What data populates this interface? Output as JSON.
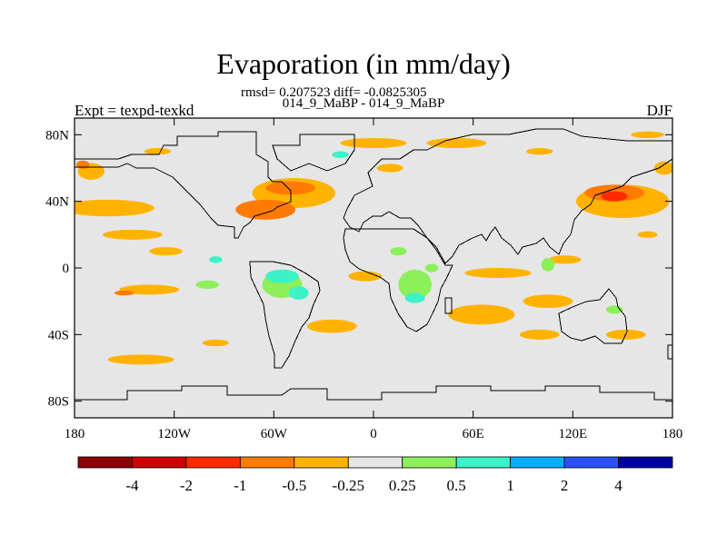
{
  "chart_data": {
    "type": "heatmap",
    "title": "Evaporation (in mm/day)",
    "stat_text": "rmsd= 0.207523 diff= -0.0825305",
    "subtitle": "014_9_MaBP - 014_9_MaBP",
    "left_label": "Expt = texpd-texkd",
    "right_label": "DJF",
    "xlim": [
      -180,
      180
    ],
    "ylim": [
      -90,
      90
    ],
    "x_ticks": [
      {
        "value": -180,
        "label": "180"
      },
      {
        "value": -120,
        "label": "120W"
      },
      {
        "value": -60,
        "label": "60W"
      },
      {
        "value": 0,
        "label": "0"
      },
      {
        "value": 60,
        "label": "60E"
      },
      {
        "value": 120,
        "label": "120E"
      },
      {
        "value": 180,
        "label": "180"
      }
    ],
    "y_ticks": [
      {
        "value": 80,
        "label": "80N"
      },
      {
        "value": 40,
        "label": "40N"
      },
      {
        "value": 0,
        "label": "0"
      },
      {
        "value": -40,
        "label": "40S"
      },
      {
        "value": -80,
        "label": "80S"
      }
    ],
    "colorbar": {
      "colors": [
        "#8b0000",
        "#cc0000",
        "#ff2a00",
        "#ff7a00",
        "#ffb300",
        "#e6e6e6",
        "#8cf05a",
        "#3cf2c8",
        "#00b0ff",
        "#2a50ff",
        "#0000a0"
      ],
      "labels": [
        "-4",
        "-2",
        "-1",
        "-0.5",
        "-0.25",
        "0.25",
        "0.5",
        "1",
        "2",
        "4"
      ]
    },
    "regions": [
      {
        "lon": 175,
        "lat": 60,
        "rx": 6,
        "ry": 4,
        "color": "#ffb300"
      },
      {
        "lon": -170,
        "lat": 58,
        "rx": 8,
        "ry": 5,
        "color": "#ffb300"
      },
      {
        "lon": -175,
        "lat": 62,
        "rx": 4,
        "ry": 2.5,
        "color": "#ff7a00"
      },
      {
        "lon": -160,
        "lat": 36,
        "rx": 28,
        "ry": 5,
        "color": "#ffb300"
      },
      {
        "lon": -145,
        "lat": 20,
        "rx": 18,
        "ry": 3,
        "color": "#ffb300"
      },
      {
        "lon": -125,
        "lat": 10,
        "rx": 10,
        "ry": 2.5,
        "color": "#ffb300"
      },
      {
        "lon": -135,
        "lat": -13,
        "rx": 18,
        "ry": 3,
        "color": "#ffb300"
      },
      {
        "lon": -150,
        "lat": -15,
        "rx": 6,
        "ry": 1.5,
        "color": "#ff7a00"
      },
      {
        "lon": -140,
        "lat": -55,
        "rx": 20,
        "ry": 3,
        "color": "#ffb300"
      },
      {
        "lon": -95,
        "lat": -45,
        "rx": 8,
        "ry": 2,
        "color": "#ffb300"
      },
      {
        "lon": -48,
        "lat": 45,
        "rx": 25,
        "ry": 9,
        "color": "#ffb300"
      },
      {
        "lon": -65,
        "lat": 35,
        "rx": 18,
        "ry": 6,
        "color": "#ff7a00"
      },
      {
        "lon": -50,
        "lat": 48,
        "rx": 15,
        "ry": 4,
        "color": "#ff7a00"
      },
      {
        "lon": 0,
        "lat": 75,
        "rx": 20,
        "ry": 3,
        "color": "#ffb300"
      },
      {
        "lon": 50,
        "lat": 75,
        "rx": 18,
        "ry": 3,
        "color": "#ffb300"
      },
      {
        "lon": 10,
        "lat": 60,
        "rx": 8,
        "ry": 2.5,
        "color": "#ffb300"
      },
      {
        "lon": -20,
        "lat": 68,
        "rx": 5,
        "ry": 2,
        "color": "#3cf2c8"
      },
      {
        "lon": -130,
        "lat": 70,
        "rx": 8,
        "ry": 2,
        "color": "#ffb300"
      },
      {
        "lon": 100,
        "lat": 70,
        "rx": 8,
        "ry": 2,
        "color": "#ffb300"
      },
      {
        "lon": 165,
        "lat": 80,
        "rx": 10,
        "ry": 2,
        "color": "#ffb300"
      },
      {
        "lon": 150,
        "lat": 40,
        "rx": 28,
        "ry": 10,
        "color": "#ffb300"
      },
      {
        "lon": 145,
        "lat": 45,
        "rx": 18,
        "ry": 5,
        "color": "#ff7a00"
      },
      {
        "lon": 145,
        "lat": 43,
        "rx": 8,
        "ry": 3,
        "color": "#ff2a00"
      },
      {
        "lon": 165,
        "lat": 20,
        "rx": 6,
        "ry": 2,
        "color": "#ffb300"
      },
      {
        "lon": 75,
        "lat": -3,
        "rx": 20,
        "ry": 3,
        "color": "#ffb300"
      },
      {
        "lon": 65,
        "lat": -28,
        "rx": 20,
        "ry": 6,
        "color": "#ffb300"
      },
      {
        "lon": 105,
        "lat": -20,
        "rx": 15,
        "ry": 4,
        "color": "#ffb300"
      },
      {
        "lon": 100,
        "lat": -40,
        "rx": 12,
        "ry": 3,
        "color": "#ffb300"
      },
      {
        "lon": 152,
        "lat": -40,
        "rx": 12,
        "ry": 3,
        "color": "#ffb300"
      },
      {
        "lon": -5,
        "lat": -5,
        "rx": 10,
        "ry": 3,
        "color": "#ffb300"
      },
      {
        "lon": -25,
        "lat": -35,
        "rx": 15,
        "ry": 4,
        "color": "#ffb300"
      },
      {
        "lon": 115,
        "lat": 5,
        "rx": 10,
        "ry": 2.5,
        "color": "#ffb300"
      },
      {
        "lon": -100,
        "lat": -10,
        "rx": 7,
        "ry": 2.5,
        "color": "#8cf05a"
      },
      {
        "lon": -95,
        "lat": 5,
        "rx": 4,
        "ry": 2,
        "color": "#3cf2c8"
      },
      {
        "lon": -55,
        "lat": -10,
        "rx": 12,
        "ry": 8,
        "color": "#8cf05a"
      },
      {
        "lon": -55,
        "lat": -5,
        "rx": 10,
        "ry": 4,
        "color": "#3cf2c8"
      },
      {
        "lon": -45,
        "lat": -15,
        "rx": 6,
        "ry": 4,
        "color": "#3cf2c8"
      },
      {
        "lon": 25,
        "lat": -10,
        "rx": 10,
        "ry": 9,
        "color": "#8cf05a"
      },
      {
        "lon": 25,
        "lat": -18,
        "rx": 6,
        "ry": 3,
        "color": "#3cf2c8"
      },
      {
        "lon": 15,
        "lat": 10,
        "rx": 5,
        "ry": 2.5,
        "color": "#8cf05a"
      },
      {
        "lon": 35,
        "lat": 0,
        "rx": 4,
        "ry": 2.5,
        "color": "#8cf05a"
      },
      {
        "lon": 105,
        "lat": 2,
        "rx": 4,
        "ry": 4,
        "color": "#8cf05a"
      },
      {
        "lon": 145,
        "lat": -25,
        "rx": 5,
        "ry": 2.5,
        "color": "#8cf05a"
      }
    ]
  }
}
